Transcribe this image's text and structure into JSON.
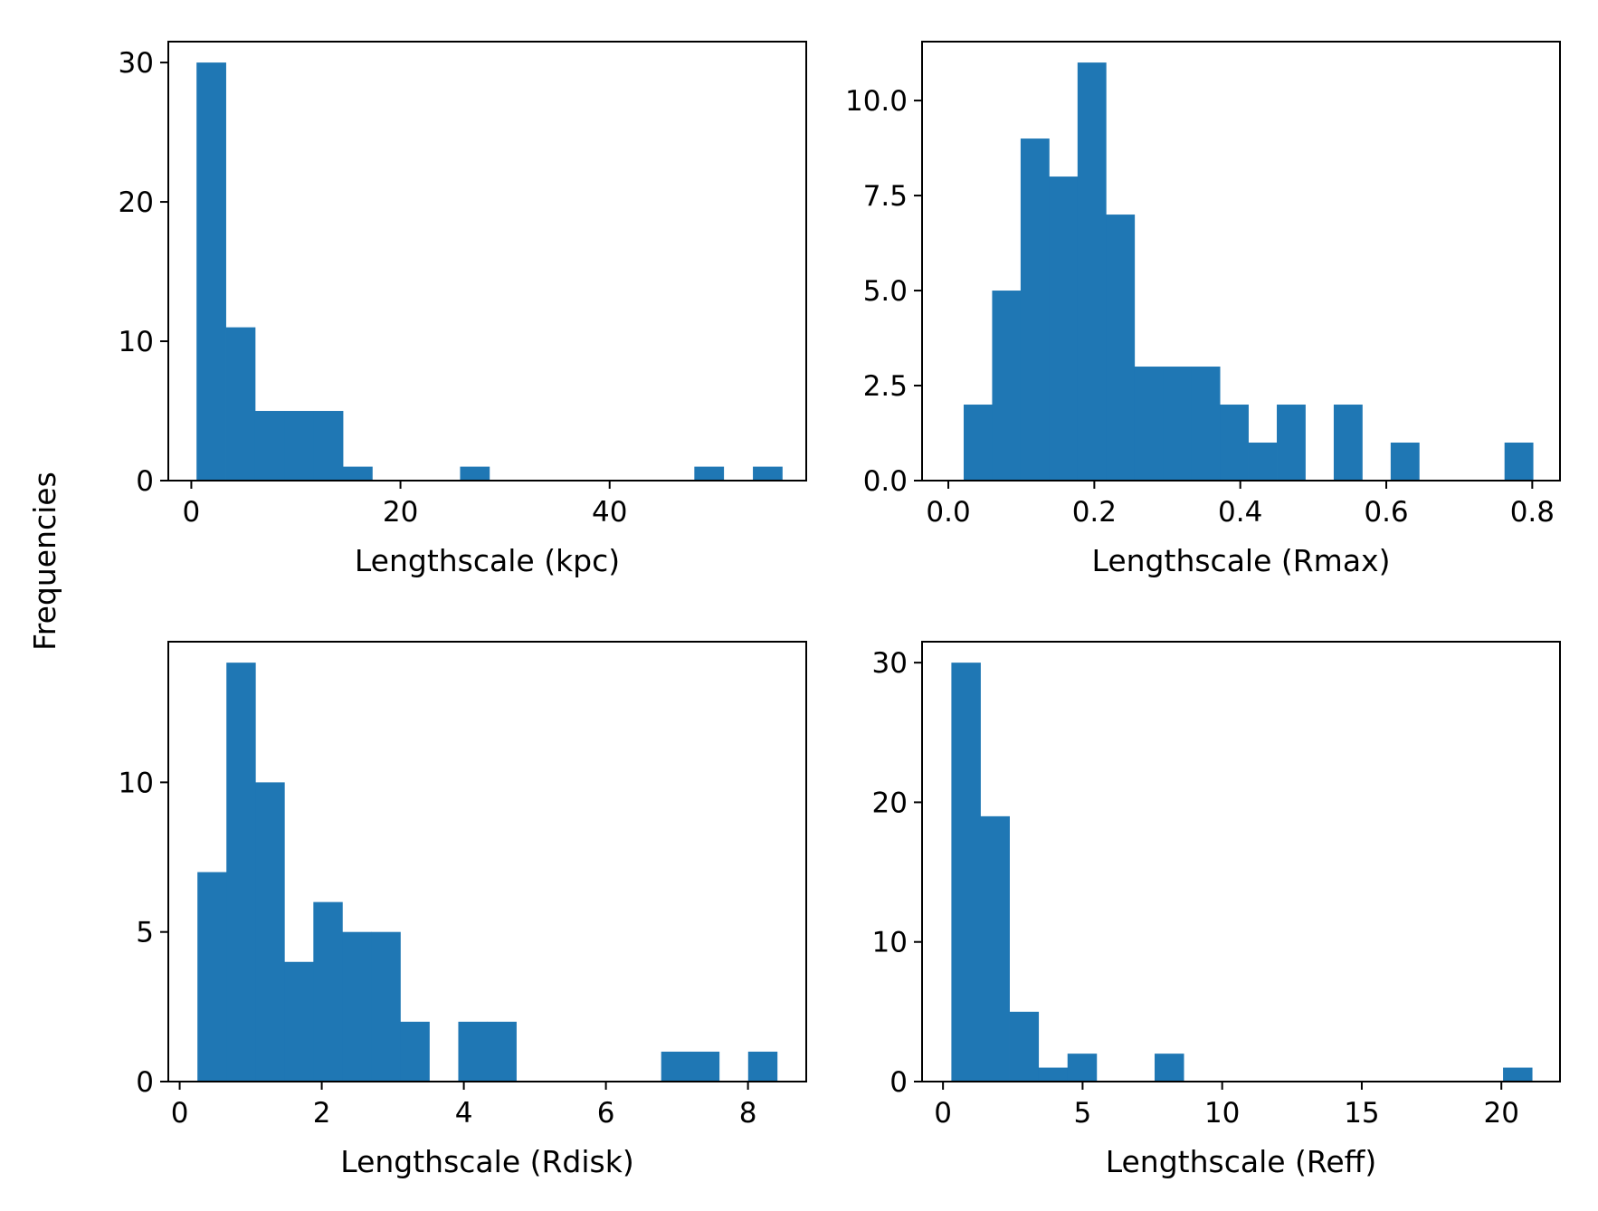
{
  "figure": {
    "shared_ylabel": "Frequencies",
    "bar_color": "#1f77b4"
  },
  "chart_data": [
    {
      "type": "bar",
      "title": "",
      "xlabel": "Lengthscale (kpc)",
      "ylabel": "",
      "xlim": [
        -2.2,
        58.8
      ],
      "ylim": [
        0,
        31.5
      ],
      "xticks": [
        0,
        20,
        40
      ],
      "yticks": [
        0,
        10,
        20,
        30
      ],
      "bin_edges": [
        0.5,
        3.3,
        6.1,
        8.9,
        11.7,
        14.5,
        17.3,
        20.1,
        22.9,
        25.7,
        28.5,
        31.3,
        34.1,
        36.9,
        39.7,
        42.5,
        45.3,
        48.1,
        50.9,
        53.7,
        56.5
      ],
      "values": [
        30,
        11,
        5,
        5,
        5,
        1,
        0,
        0,
        0,
        1,
        0,
        0,
        0,
        0,
        0,
        0,
        0,
        1,
        0,
        1
      ],
      "grid": false
    },
    {
      "type": "bar",
      "title": "",
      "xlabel": "Lengthscale (Rmax)",
      "ylabel": "",
      "xlim": [
        -0.036,
        0.838
      ],
      "ylim": [
        0,
        11.55
      ],
      "xticks": [
        0.0,
        0.2,
        0.4,
        0.6,
        0.8
      ],
      "ytick_labels": [
        "0.0",
        "2.5",
        "5.0",
        "7.5",
        "10.0"
      ],
      "xtick_labels": [
        "0.0",
        "0.2",
        "0.4",
        "0.6",
        "0.8"
      ],
      "yticks": [
        0,
        2.5,
        5,
        7.5,
        10
      ],
      "bin_edges": [
        0.021,
        0.06,
        0.099,
        0.138,
        0.177,
        0.216,
        0.255,
        0.294,
        0.333,
        0.372,
        0.411,
        0.45,
        0.489,
        0.528,
        0.567,
        0.606,
        0.645,
        0.684,
        0.723,
        0.762,
        0.801
      ],
      "values": [
        2,
        5,
        9,
        8,
        11,
        7,
        3,
        3,
        3,
        2,
        1,
        2,
        0,
        2,
        0,
        1,
        0,
        0,
        0,
        1
      ],
      "grid": false
    },
    {
      "type": "bar",
      "title": "",
      "xlabel": "Lengthscale (Rdisk)",
      "ylabel": "",
      "xlim": [
        -0.16,
        8.82
      ],
      "ylim": [
        0,
        14.7
      ],
      "xticks": [
        0,
        2,
        4,
        6,
        8
      ],
      "yticks": [
        0,
        5,
        10
      ],
      "bin_edges": [
        0.25,
        0.658,
        1.066,
        1.474,
        1.882,
        2.29,
        2.698,
        3.106,
        3.514,
        3.922,
        4.33,
        4.738,
        5.146,
        5.554,
        5.962,
        6.37,
        6.778,
        7.186,
        7.594,
        8.002,
        8.41
      ],
      "values": [
        7,
        14,
        10,
        4,
        6,
        5,
        5,
        2,
        0,
        2,
        2,
        0,
        0,
        0,
        0,
        0,
        1,
        1,
        0,
        1
      ],
      "grid": false
    },
    {
      "type": "bar",
      "title": "",
      "xlabel": "Lengthscale (Reff)",
      "ylabel": "",
      "xlim": [
        -0.75,
        22.1
      ],
      "ylim": [
        0,
        31.5
      ],
      "xticks": [
        0,
        5,
        10,
        15,
        20
      ],
      "yticks": [
        0,
        10,
        20,
        30
      ],
      "bin_edges": [
        0.3,
        1.34,
        2.38,
        3.42,
        4.46,
        5.5,
        6.54,
        7.58,
        8.62,
        9.66,
        10.7,
        11.74,
        12.78,
        13.82,
        14.86,
        15.9,
        16.94,
        17.98,
        19.02,
        20.06,
        21.1
      ],
      "values": [
        30,
        19,
        5,
        1,
        2,
        0,
        0,
        2,
        0,
        0,
        0,
        0,
        0,
        0,
        0,
        0,
        0,
        0,
        0,
        1
      ],
      "grid": false
    }
  ]
}
